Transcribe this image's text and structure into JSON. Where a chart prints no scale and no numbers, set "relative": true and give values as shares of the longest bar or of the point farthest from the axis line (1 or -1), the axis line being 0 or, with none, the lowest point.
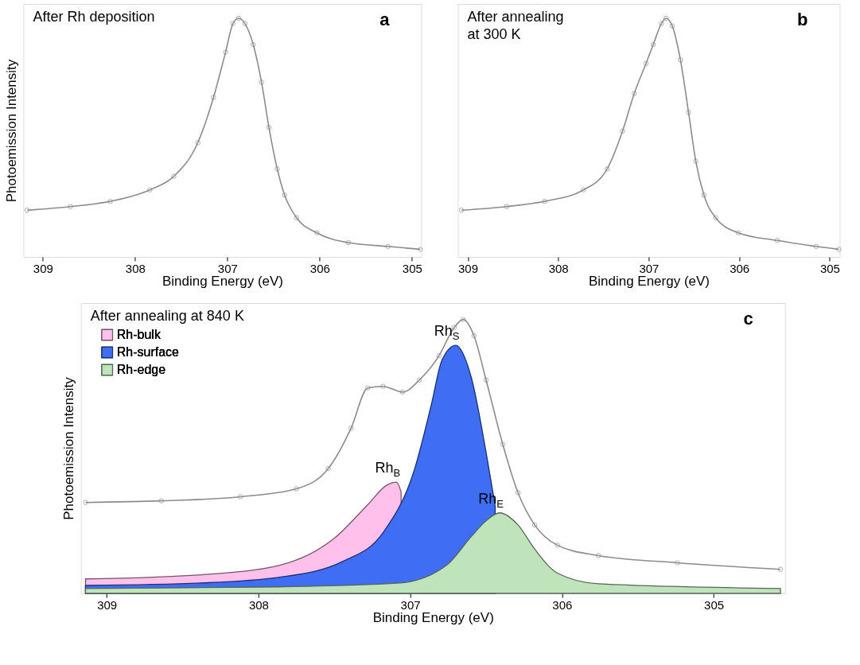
{
  "chart_data": [
    {
      "type": "line",
      "relative": true,
      "xlabel": "Binding Energy (eV)",
      "ylabel": "Photoemission Intensity",
      "xlim": [
        309.21,
        304.9
      ],
      "xticks": [
        {
          "value": 309,
          "label": "309"
        },
        {
          "value": 308,
          "label": "308"
        },
        {
          "value": 307,
          "label": "307"
        },
        {
          "value": 306,
          "label": "306"
        },
        {
          "value": 305,
          "label": "305"
        }
      ],
      "marker": "circle",
      "grid": false,
      "annotations": [
        "After Rh deposition",
        "a"
      ],
      "series": [
        {
          "color": "#8c8c8c",
          "x": [
            309.17,
            308.7,
            308.27,
            307.84,
            307.58,
            307.32,
            307.15,
            307.02,
            306.94,
            306.88,
            306.81,
            306.72,
            306.63,
            306.55,
            306.46,
            306.38,
            306.25,
            306.03,
            305.69,
            305.26,
            304.91
          ],
          "values": [
            0.196,
            0.211,
            0.233,
            0.281,
            0.338,
            0.479,
            0.669,
            0.858,
            0.978,
            1,
            0.978,
            0.89,
            0.732,
            0.543,
            0.369,
            0.259,
            0.164,
            0.101,
            0.06,
            0.044,
            0.032
          ]
        }
      ]
    },
    {
      "type": "line",
      "relative": true,
      "xlabel": "Binding Energy (eV)",
      "xlim": [
        309.11,
        304.89
      ],
      "xticks": [
        {
          "value": 309,
          "label": "309"
        },
        {
          "value": 308,
          "label": "308"
        },
        {
          "value": 307,
          "label": "307"
        },
        {
          "value": 306,
          "label": "306"
        },
        {
          "value": 305,
          "label": "305"
        }
      ],
      "marker": "circle",
      "grid": false,
      "annotations": [
        "After annealing\nat 300 K",
        "b"
      ],
      "series": [
        {
          "color": "#8c8c8c",
          "x": [
            309.07,
            308.57,
            308.15,
            307.72,
            307.46,
            307.29,
            307.16,
            307.03,
            306.95,
            306.86,
            306.81,
            306.74,
            306.65,
            306.56,
            306.48,
            306.39,
            306.26,
            306.01,
            305.58,
            305.15,
            304.9
          ],
          "values": [
            0.196,
            0.211,
            0.233,
            0.281,
            0.369,
            0.527,
            0.685,
            0.811,
            0.89,
            0.978,
            1,
            0.968,
            0.826,
            0.606,
            0.401,
            0.259,
            0.164,
            0.101,
            0.069,
            0.044,
            0.032
          ]
        }
      ]
    },
    {
      "type": "line",
      "relative": true,
      "xlabel": "Binding Energy (eV)",
      "ylabel": "Photoemission Intensity",
      "xlim": [
        309.17,
        304.53
      ],
      "xticks": [
        {
          "value": 309,
          "label": "309"
        },
        {
          "value": 308,
          "label": "308"
        },
        {
          "value": 307,
          "label": "307"
        },
        {
          "value": 306,
          "label": "306"
        },
        {
          "value": 305,
          "label": "305"
        }
      ],
      "grid": false,
      "legend": "top left",
      "annotations": [
        "After annealing at 840 K",
        "c",
        {
          "text": "Rh$_{B}$",
          "x": 307.09,
          "y": 0.406
        },
        {
          "text": "Rh$_{S}$",
          "x": 306.7,
          "y": 0.906
        },
        {
          "text": "Rh$_{E}$",
          "x": 306.41,
          "y": 0.294
        }
      ],
      "series": [
        {
          "name": "Rh-bulk",
          "type": "area",
          "color": "#ffc0ec",
          "x": [
            309.14,
            308.38,
            307.86,
            307.49,
            307.28,
            307.15,
            307.09,
            307.06
          ],
          "values": [
            0.053,
            0.068,
            0.103,
            0.206,
            0.324,
            0.397,
            0.406,
            0.37
          ]
        },
        {
          "name": "Rh-surface",
          "type": "area",
          "color": "#3f6ef5",
          "x": [
            309.14,
            308.38,
            307.86,
            307.44,
            307.18,
            306.97,
            306.86,
            306.79,
            306.7,
            306.6,
            306.5,
            306.44
          ],
          "values": [
            0.029,
            0.038,
            0.059,
            0.118,
            0.221,
            0.456,
            0.691,
            0.853,
            0.906,
            0.794,
            0.515,
            0.32
          ]
        },
        {
          "name": "Rh-edge",
          "type": "area",
          "color": "#bfe4bb",
          "x": [
            309.14,
            307.86,
            307.07,
            306.76,
            306.6,
            306.5,
            306.41,
            306.29,
            306.18,
            306.03,
            305.76,
            304.56
          ],
          "values": [
            0.018,
            0.024,
            0.038,
            0.103,
            0.206,
            0.265,
            0.294,
            0.25,
            0.162,
            0.074,
            0.035,
            0.018
          ]
        },
        {
          "color": "#8c8c8c",
          "marker": "circle",
          "x": [
            309.14,
            308.64,
            308.12,
            307.75,
            307.54,
            307.39,
            307.28,
            307.18,
            307.05,
            306.94,
            306.81,
            306.71,
            306.65,
            306.58,
            306.5,
            306.39,
            306.29,
            306.18,
            306.03,
            305.76,
            305.24,
            304.56
          ],
          "values": [
            0.332,
            0.338,
            0.353,
            0.382,
            0.456,
            0.603,
            0.75,
            0.756,
            0.735,
            0.779,
            0.868,
            0.971,
            1,
            0.941,
            0.779,
            0.544,
            0.368,
            0.25,
            0.176,
            0.138,
            0.112,
            0.088
          ]
        }
      ]
    }
  ]
}
